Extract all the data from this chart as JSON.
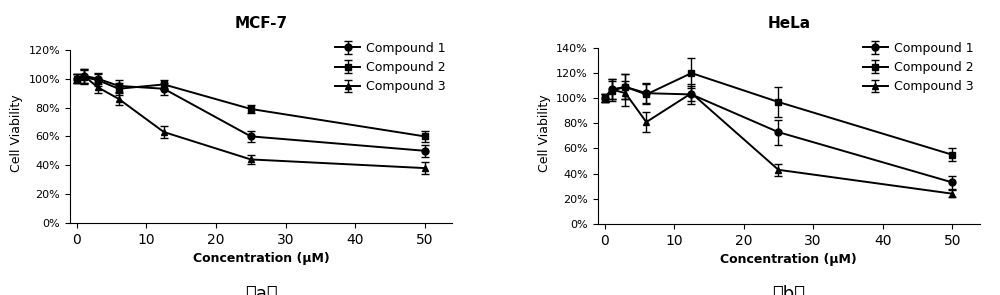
{
  "mcf7": {
    "title": "MCF-7",
    "xlabel": "Concentration (μM)",
    "ylabel": "Cell Viability",
    "x": [
      0,
      1,
      3,
      6,
      12.5,
      25,
      50
    ],
    "compound1": {
      "y": [
        100,
        102,
        100,
        95,
        93,
        60,
        50
      ],
      "yerr": [
        3,
        5,
        4,
        4,
        4,
        4,
        4
      ]
    },
    "compound2": {
      "y": [
        100,
        101,
        99,
        93,
        96,
        79,
        60
      ],
      "yerr": [
        3,
        5,
        4,
        4,
        3,
        3,
        4
      ]
    },
    "compound3": {
      "y": [
        100,
        102,
        94,
        86,
        63,
        44,
        38
      ],
      "yerr": [
        3,
        5,
        4,
        4,
        4,
        3,
        4
      ]
    },
    "ylim": [
      -5,
      130
    ],
    "yticks": [
      0,
      20,
      40,
      60,
      80,
      100,
      120
    ],
    "ytick_labels": [
      "0%",
      "20%",
      "40%",
      "60%",
      "80%",
      "100%",
      "120%"
    ],
    "xlim": [
      -1,
      54
    ],
    "xticks": [
      0,
      10,
      20,
      30,
      40,
      50
    ],
    "caption": "（a）"
  },
  "hela": {
    "title": "HeLa",
    "xlabel": "Concentration (μM)",
    "ylabel": "Cell Viability",
    "x": [
      0,
      1,
      3,
      6,
      12.5,
      25,
      50
    ],
    "compound1": {
      "y": [
        100,
        107,
        109,
        104,
        103,
        73,
        33
      ],
      "yerr": [
        3,
        8,
        10,
        8,
        8,
        10,
        5
      ]
    },
    "compound2": {
      "y": [
        100,
        106,
        109,
        103,
        120,
        97,
        55
      ],
      "yerr": [
        3,
        8,
        10,
        8,
        12,
        12,
        5
      ]
    },
    "compound3": {
      "y": [
        100,
        107,
        104,
        81,
        104,
        43,
        24
      ],
      "yerr": [
        3,
        8,
        10,
        8,
        6,
        5,
        3
      ]
    },
    "ylim": [
      -5,
      150
    ],
    "yticks": [
      0,
      20,
      40,
      60,
      80,
      100,
      120,
      140
    ],
    "ytick_labels": [
      "0%",
      "20%",
      "40%",
      "60%",
      "80%",
      "100%",
      "120%",
      "140%"
    ],
    "xlim": [
      -1,
      54
    ],
    "xticks": [
      0,
      10,
      20,
      30,
      40,
      50
    ],
    "caption": "（b）"
  },
  "line_color": "#000000",
  "marker_circle": "o",
  "marker_square": "s",
  "marker_triangle": "^",
  "legend_labels": [
    "Compound 1",
    "Compound 2",
    "Compound 3"
  ],
  "title_fontsize": 11,
  "label_fontsize": 9,
  "tick_fontsize": 8,
  "legend_fontsize": 9,
  "caption_fontsize": 13,
  "linewidth": 1.4,
  "markersize": 5,
  "capsize": 3
}
